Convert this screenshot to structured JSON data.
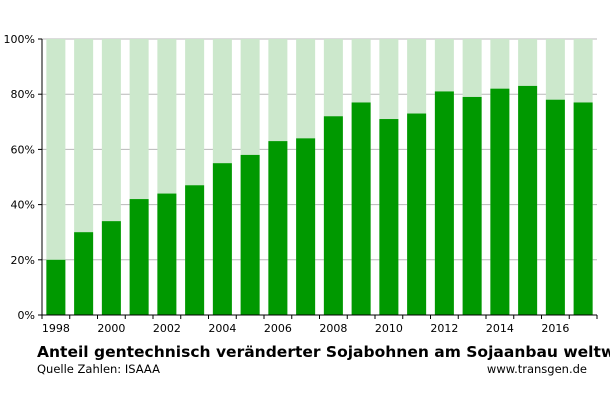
{
  "chart_data": {
    "type": "bar",
    "title": "Anteil gentechnisch veränderter Sojabohnen am Sojaanbau weltweit",
    "source": "Quelle Zahlen: ISAAA",
    "website": "www.transgen.de",
    "categories": [
      "1998",
      "1999",
      "2000",
      "2001",
      "2002",
      "2003",
      "2004",
      "2005",
      "2006",
      "2007",
      "2008",
      "2009",
      "2010",
      "2011",
      "2012",
      "2013",
      "2014",
      "2015",
      "2016",
      "2017"
    ],
    "values": [
      20,
      30,
      34,
      42,
      44,
      47,
      55,
      58,
      63,
      64,
      72,
      77,
      71,
      73,
      81,
      79,
      82,
      83,
      78,
      77
    ],
    "x_tick_labels": [
      "1998",
      "2000",
      "2002",
      "2004",
      "2006",
      "2008",
      "2010",
      "2012",
      "2014",
      "2016"
    ],
    "y_tick_labels": [
      "0%",
      "20%",
      "40%",
      "60%",
      "80%",
      "100%"
    ],
    "ylim": [
      0,
      100
    ],
    "grid": true,
    "colors": {
      "bar": "#009900",
      "background_bar": "#cce8cc",
      "grid": "#b8b8b8"
    }
  }
}
